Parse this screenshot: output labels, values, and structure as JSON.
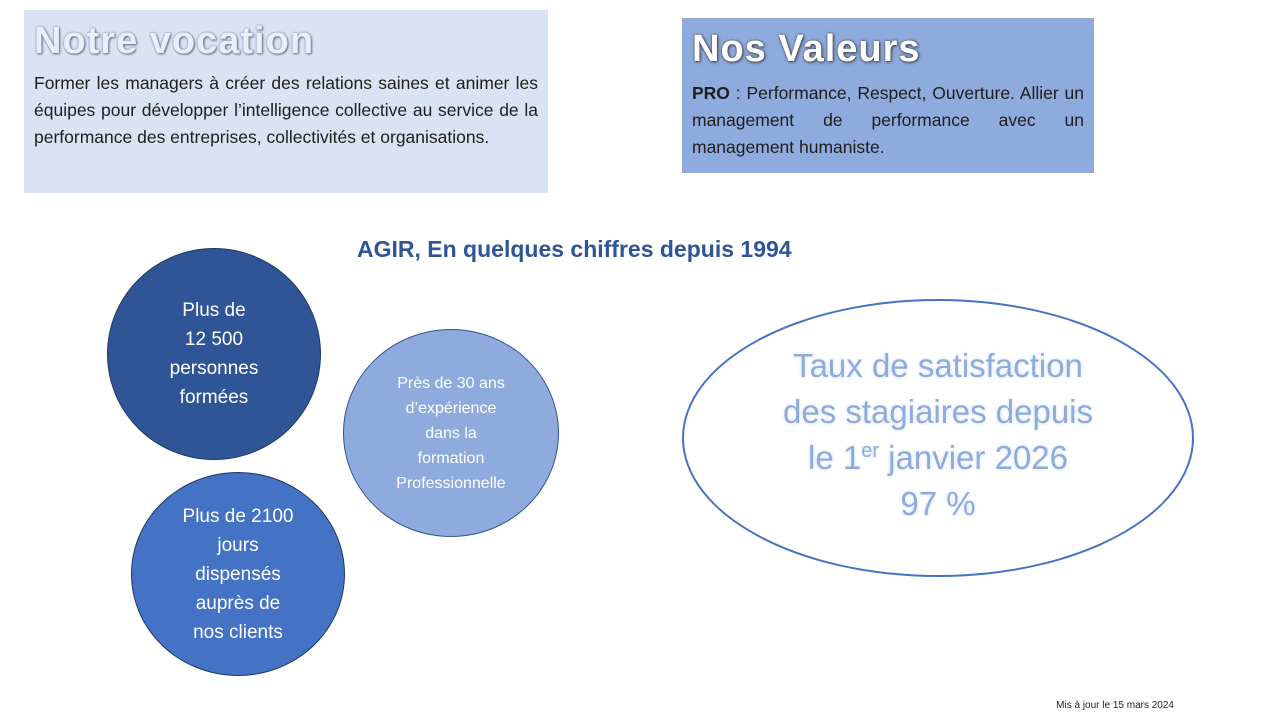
{
  "vocation": {
    "title": "Notre vocation",
    "text": "Former les managers à créer des relations saines et animer les équipes pour développer l’intelligence collective au service de la performance des entreprises, collectivités et organisations."
  },
  "valeurs": {
    "title": "Nos Valeurs",
    "pro": "PRO",
    "text_after_pro": " : Performance, Respect, Ouverture. Allier un management de performance avec un management humaniste."
  },
  "heading": "AGIR, En quelques chiffres depuis 1994",
  "circles": [
    {
      "lines": [
        "Plus de",
        "12 500",
        "personnes",
        "formées"
      ],
      "color": "#2f5597"
    },
    {
      "lines": [
        "Près de 30 ans",
        "d’expérience",
        "dans la",
        "formation",
        "Professionnelle"
      ],
      "color": "#8faadc"
    },
    {
      "lines": [
        "Plus de 2100",
        "jours",
        "dispensés",
        "auprès de",
        "nos clients"
      ],
      "color": "#4472c4"
    }
  ],
  "satisfaction": {
    "line1": "Taux de satisfaction",
    "line2": "des stagiaires depuis",
    "line3_before": "le 1",
    "line3_sup": "er",
    "line3_after": " janvier 2026",
    "value": "97 %"
  },
  "footer": "Mis à jour le 15 mars 2024",
  "colors": {
    "dark_blue": "#2f5597",
    "mid_blue": "#4472c4",
    "light_blue": "#8faadc",
    "pale_blue": "#dae3f3"
  }
}
